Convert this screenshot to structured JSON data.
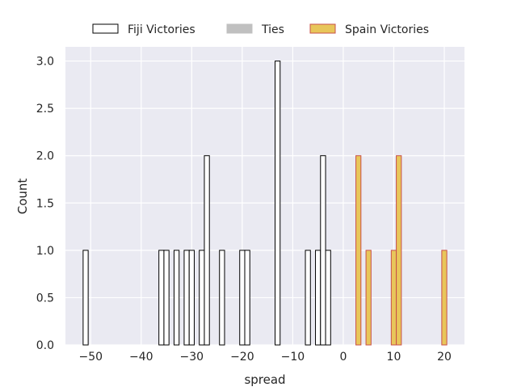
{
  "chart_data": {
    "type": "bar",
    "title": "",
    "xlabel": "spread",
    "ylabel": "Count",
    "xlim": [
      -55,
      24
    ],
    "ylim": [
      0,
      3.15
    ],
    "bin_width": 1,
    "grid": true,
    "legend_placement": "top-center-outside",
    "xticks": [
      -50,
      -40,
      -30,
      -20,
      -10,
      0,
      10,
      20
    ],
    "xtick_labels": [
      "−50",
      "−40",
      "−30",
      "−20",
      "−10",
      "0",
      "10",
      "20"
    ],
    "yticks": [
      0,
      0.5,
      1,
      1.5,
      2,
      2.5,
      3
    ],
    "ytick_labels": [
      "0.0",
      "0.5",
      "1.0",
      "1.5",
      "2.0",
      "2.5",
      "3.0"
    ],
    "series": [
      {
        "name": "Fiji Victories",
        "fill": "#ffffff",
        "edge": "#000000",
        "x": [
          -51,
          -36,
          -35,
          -33,
          -31,
          -30,
          -28,
          -27,
          -24,
          -20,
          -19,
          -13,
          -7,
          -5,
          -4,
          -3
        ],
        "values": [
          1,
          1,
          1,
          1,
          1,
          1,
          1,
          2,
          1,
          1,
          1,
          3,
          1,
          1,
          2,
          1
        ]
      },
      {
        "name": "Ties",
        "fill": "#c0c0c0",
        "edge": "#c0c0c0",
        "x": [],
        "values": []
      },
      {
        "name": "Spain Victories",
        "fill": "#e8c65a",
        "edge": "#c8504a",
        "x": [
          3,
          5,
          10,
          11,
          20
        ],
        "values": [
          2,
          1,
          1,
          2,
          1
        ]
      }
    ]
  }
}
